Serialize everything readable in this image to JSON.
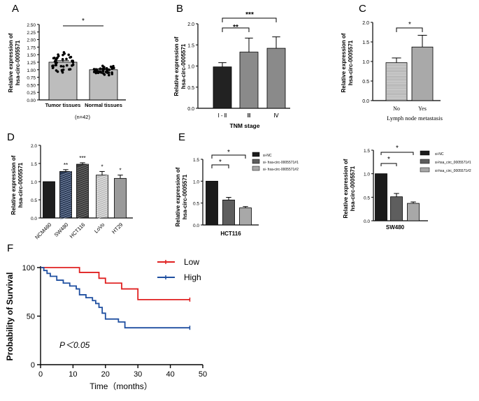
{
  "chart_data": [
    {
      "panel": "A",
      "type": "bar",
      "ylabel": "Relative expression of\nhsa-circ-0005571",
      "categories": [
        "Tumor tissues",
        "Normal tissues"
      ],
      "values": [
        1.25,
        1.0
      ],
      "errors": [
        0.05,
        0.03
      ],
      "ylim": [
        0,
        2.5
      ],
      "yticks": [
        "0.00",
        "0.25",
        "0.50",
        "0.75",
        "1.00",
        "1.25",
        "1.50",
        "1.75",
        "2.00",
        "2.25",
        "2.50"
      ],
      "significance": "*",
      "note": "(n=42)",
      "fills": [
        "#bdbdbd",
        "#bdbdbd"
      ]
    },
    {
      "panel": "B",
      "type": "bar",
      "ylabel": "Relative expression of\nhsa-circ-0005571",
      "xlabel": "TNM stage",
      "categories": [
        "Ⅰ - Ⅱ",
        "Ⅲ",
        "Ⅳ"
      ],
      "values": [
        0.98,
        1.33,
        1.42
      ],
      "errors": [
        0.1,
        0.33,
        0.27
      ],
      "ylim": [
        0,
        2.0
      ],
      "yticks": [
        "0.0",
        "0.5",
        "1.0",
        "1.5",
        "2.0"
      ],
      "significance": [
        "**",
        "***"
      ],
      "fills": [
        "#222222",
        "#8a8a8a",
        "#8a8a8a"
      ]
    },
    {
      "panel": "C",
      "type": "bar",
      "ylabel": "Relative expression of\nhsa-circ-0005571",
      "xlabel": "Lymph node metastasis",
      "categories": [
        "No",
        "Yes"
      ],
      "values": [
        0.97,
        1.37
      ],
      "errors": [
        0.12,
        0.3
      ],
      "ylim": [
        0,
        2.0
      ],
      "yticks": [
        "0.0",
        "0.5",
        "1.0",
        "1.5",
        "2.0"
      ],
      "significance": "*",
      "fills": [
        "#d6d6d6",
        "#a9a9a9"
      ]
    },
    {
      "panel": "D",
      "type": "bar",
      "ylabel": "Relative expression of\nhsa-circ-0005571",
      "categories": [
        "NCM460",
        "SW480",
        "HCT116",
        "LoVo",
        "HT29"
      ],
      "values": [
        1.0,
        1.28,
        1.48,
        1.18,
        1.09
      ],
      "errors": [
        0.0,
        0.05,
        0.04,
        0.1,
        0.09
      ],
      "ylim": [
        0,
        2.0
      ],
      "yticks": [
        "0.0",
        "0.5",
        "1.0",
        "1.5",
        "2.0"
      ],
      "marks": [
        "",
        "**",
        "***",
        "*",
        "*"
      ],
      "fills": [
        "#1e1e1e",
        "#2b3a55",
        "#3a3a3a",
        "#bfbfbf",
        "#9a9a9a"
      ]
    },
    {
      "panel": "E",
      "type": "bar",
      "ylabel": "Relative expression of\nhsa-circ-0005571",
      "xlabel": "HCT116",
      "series_names": [
        "si-NC",
        "si- hsa-circ-0005571#1",
        "si- hsa-circ-0005571#2"
      ],
      "values": [
        1.0,
        0.57,
        0.39
      ],
      "errors": [
        0.0,
        0.06,
        0.03
      ],
      "ylim": [
        0,
        1.5
      ],
      "yticks": [
        "0.0",
        "0.5",
        "1.0",
        "1.5"
      ],
      "significance": [
        "*",
        "*"
      ],
      "fills": [
        "#1b1b1b",
        "#5e5e5e",
        "#a8a8a8"
      ]
    },
    {
      "panel": "E2",
      "type": "bar",
      "ylabel": "Relative expression of\nhsa-circ-0005571",
      "xlabel": "SW480",
      "series_names": [
        "si-NC",
        "si-hsa_circ_0005571#1",
        "si-hsa_circ_0005571#2"
      ],
      "values": [
        1.0,
        0.51,
        0.37
      ],
      "errors": [
        0.0,
        0.07,
        0.03
      ],
      "ylim": [
        0,
        1.5
      ],
      "yticks": [
        "0.0",
        "0.5",
        "1.0",
        "1.5"
      ],
      "significance": [
        "*",
        "*"
      ],
      "fills": [
        "#1b1b1b",
        "#5e5e5e",
        "#a8a8a8"
      ]
    },
    {
      "panel": "F",
      "type": "line",
      "ylabel": "Probability of Survival",
      "xlabel": "Time（months）",
      "xlim": [
        0,
        50
      ],
      "ylim": [
        0,
        100
      ],
      "xticks": [
        "0",
        "10",
        "20",
        "30",
        "40",
        "50"
      ],
      "yticks": [
        "0",
        "50",
        "100"
      ],
      "annotation": "P＜0.05",
      "series": [
        {
          "name": "Low",
          "color": "#e02020",
          "x": [
            0,
            12,
            12,
            18,
            18,
            20,
            20,
            25,
            25,
            30,
            30,
            46
          ],
          "y": [
            100,
            100,
            95,
            95,
            89,
            89,
            84,
            84,
            78,
            78,
            67,
            67
          ]
        },
        {
          "name": "High",
          "color": "#1f4fa0",
          "x": [
            0,
            1,
            1,
            2,
            2,
            3,
            3,
            5,
            5,
            7,
            7,
            9,
            9,
            11,
            11,
            12,
            12,
            14,
            14,
            16,
            16,
            17,
            17,
            18,
            18,
            19,
            19,
            20,
            20,
            24,
            24,
            26,
            26,
            46
          ],
          "y": [
            100,
            100,
            97,
            97,
            94,
            94,
            91,
            91,
            87,
            87,
            84,
            84,
            81,
            81,
            78,
            78,
            72,
            72,
            69,
            69,
            66,
            66,
            63,
            63,
            59,
            59,
            53,
            53,
            47,
            47,
            44,
            44,
            38,
            38
          ]
        }
      ]
    }
  ]
}
